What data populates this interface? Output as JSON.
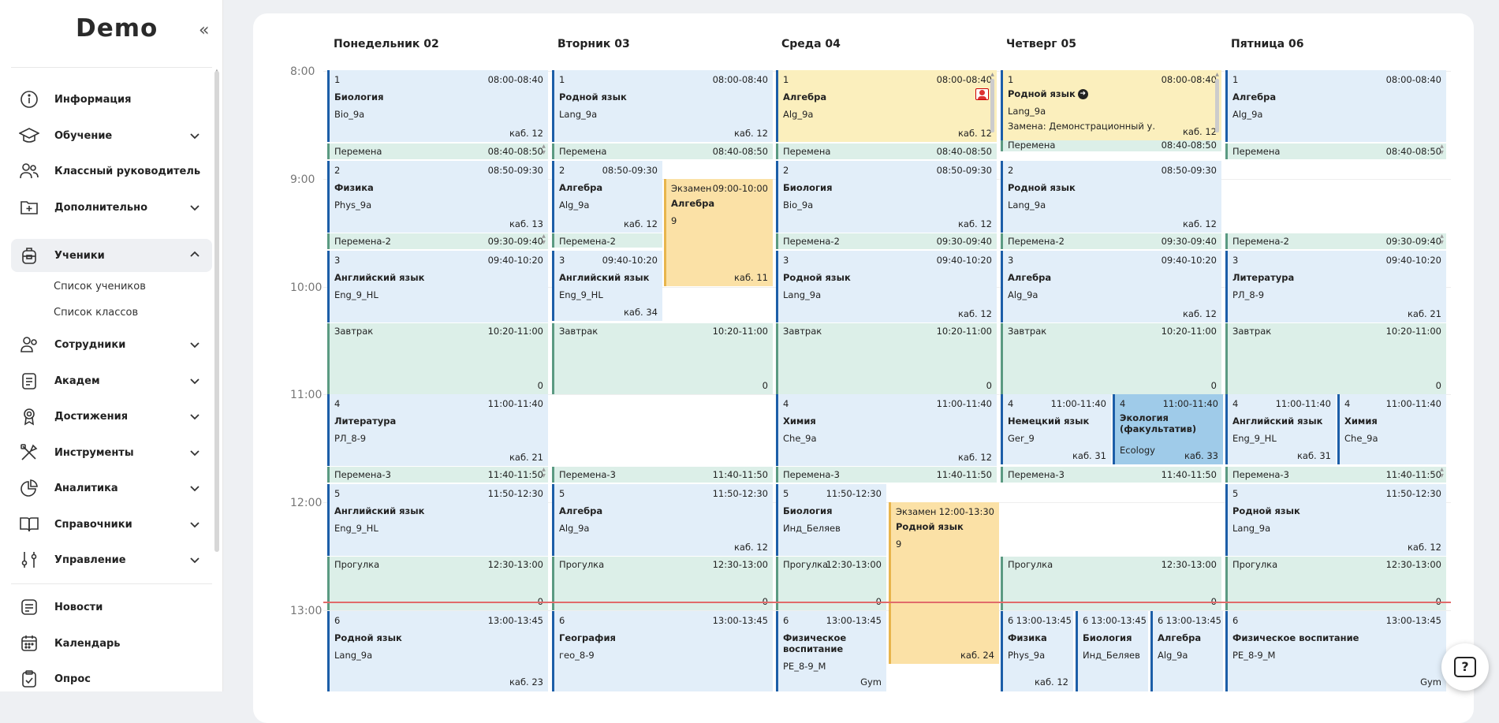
{
  "app": {
    "logo": "Demo"
  },
  "nav": {
    "info": "Информация",
    "learning": "Обучение",
    "class_teacher": "Классный руководитель",
    "additional": "Дополнительно",
    "students": "Ученики",
    "students_list": "Список учеников",
    "classes_list": "Список классов",
    "staff": "Сотрудники",
    "academ": "Академ",
    "achievements": "Достижения",
    "tools": "Инструменты",
    "analytics": "Аналитика",
    "references": "Справочники",
    "management": "Управление",
    "news": "Новости",
    "calendar": "Календарь",
    "survey": "Опрос"
  },
  "days": [
    "Понедельник 02",
    "Вторник 03",
    "Среда 04",
    "Четверг 05",
    "Пятница 06"
  ],
  "hours": [
    "8:00",
    "9:00",
    "10:00",
    "11:00",
    "12:00",
    "13:00"
  ],
  "help": "?",
  "events": [
    {
      "num": "1",
      "time": "08:00-08:40",
      "name": "Биология",
      "grp": "Bio_9a",
      "room": "каб. 12"
    },
    {
      "num": "1",
      "time": "08:00-08:40",
      "name": "Родной язык",
      "grp": "Lang_9a",
      "room": "каб. 12"
    },
    {
      "num": "1",
      "time": "08:00-08:40",
      "name": "Алгебра",
      "grp": "Alg_9a",
      "room": "каб. 12"
    },
    {
      "num": "1",
      "time": "08:00-08:40",
      "name": "Родной язык",
      "grp": "Lang_9a",
      "room": "каб. 12",
      "note": "Замена: Демонстрационный у."
    },
    {
      "num": "1",
      "time": "08:00-08:40",
      "name": "Алгебра",
      "grp": "Alg_9a",
      "room": ""
    },
    {
      "num": "Перемена",
      "time": "08:40-08:50"
    },
    {
      "num": "Перемена",
      "time": "08:40-08:50"
    },
    {
      "num": "Перемена",
      "time": "08:40-08:50"
    },
    {
      "num": "Перемена",
      "time": "08:40-08:50"
    },
    {
      "num": "Перемена",
      "time": "08:40-08:50"
    },
    {
      "num": "2",
      "time": "08:50-09:30",
      "name": "Физика",
      "grp": "Phys_9a",
      "room": "каб. 13"
    },
    {
      "num": "2",
      "time": "08:50-09:30",
      "name": "Алгебра",
      "grp": "Alg_9a",
      "room": "каб. 12"
    },
    {
      "num": "Экзамен",
      "time": "09:00-10:00",
      "name": "Алгебра",
      "grp": "9",
      "room": "каб. 11"
    },
    {
      "num": "2",
      "time": "08:50-09:30",
      "name": "Биология",
      "grp": "Bio_9a",
      "room": "каб. 12"
    },
    {
      "num": "2",
      "time": "08:50-09:30",
      "name": "Родной язык",
      "grp": "Lang_9a",
      "room": "каб. 12"
    },
    {
      "num": "Перемена-2",
      "time": "09:30-09:40"
    },
    {
      "num": "Перемена-2",
      "time": "09:30-09:40"
    },
    {
      "num": "Перемена-2",
      "time": "09:30-09:40"
    },
    {
      "num": "Перемена-2",
      "time": "09:30-09:40"
    },
    {
      "num": "Перемена-2",
      "time": "09:30-09:40"
    },
    {
      "num": "3",
      "time": "09:40-10:20",
      "name": "Английский язык",
      "grp": "Eng_9_HL",
      "room": ""
    },
    {
      "num": "3",
      "time": "09:40-10:20",
      "name": "Английский язык",
      "grp": "Eng_9_HL",
      "room": "каб. 34"
    },
    {
      "num": "3",
      "time": "09:40-10:20",
      "name": "Родной язык",
      "grp": "Lang_9a",
      "room": "каб. 12"
    },
    {
      "num": "3",
      "time": "09:40-10:20",
      "name": "Алгебра",
      "grp": "Alg_9a",
      "room": "каб. 12"
    },
    {
      "num": "3",
      "time": "09:40-10:20",
      "name": "Литература",
      "grp": "РЛ_8-9",
      "room": "каб. 21"
    },
    {
      "num": "Завтрак",
      "time": "10:20-11:00",
      "cnt": "0"
    },
    {
      "num": "Завтрак",
      "time": "10:20-11:00",
      "cnt": "0"
    },
    {
      "num": "Завтрак",
      "time": "10:20-11:00",
      "cnt": "0"
    },
    {
      "num": "Завтрак",
      "time": "10:20-11:00",
      "cnt": "0"
    },
    {
      "num": "Завтрак",
      "time": "10:20-11:00",
      "cnt": "0"
    },
    {
      "num": "4",
      "time": "11:00-11:40",
      "name": "Литература",
      "grp": "РЛ_8-9",
      "room": "каб. 21"
    },
    {
      "num": "4",
      "time": "11:00-11:40",
      "name": "Химия",
      "grp": "Che_9a",
      "room": "каб. 12"
    },
    {
      "num": "4",
      "time": "11:00-11:40",
      "name": "Немецкий язык",
      "grp": "Ger_9",
      "room": "каб. 31"
    },
    {
      "num": "4",
      "time": "11:00-11:40",
      "name": "Экология (факультатив)",
      "grp": "Ecology",
      "room": "каб. 33"
    },
    {
      "num": "4",
      "time": "11:00-11:40",
      "name": "Английский язык",
      "grp": "Eng_9_HL",
      "room": "каб. 31"
    },
    {
      "num": "4",
      "time": "11:00-11:40",
      "name": "Химия",
      "grp": "Che_9a",
      "room": ""
    },
    {
      "num": "Перемена-3",
      "time": "11:40-11:50"
    },
    {
      "num": "Перемена-3",
      "time": "11:40-11:50"
    },
    {
      "num": "Перемена-3",
      "time": "11:40-11:50"
    },
    {
      "num": "Перемена-3",
      "time": "11:40-11:50"
    },
    {
      "num": "Перемена-3",
      "time": "11:40-11:50"
    },
    {
      "num": "5",
      "time": "11:50-12:30",
      "name": "Английский язык",
      "grp": "Eng_9_HL",
      "room": ""
    },
    {
      "num": "5",
      "time": "11:50-12:30",
      "name": "Алгебра",
      "grp": "Alg_9a",
      "room": "каб. 12"
    },
    {
      "num": "5",
      "time": "11:50-12:30",
      "name": "Биология",
      "grp": "Инд_Беляев",
      "room": ""
    },
    {
      "num": "Экзамен",
      "time": "12:00-13:30",
      "name": "Родной язык",
      "grp": "9",
      "room": "каб. 24"
    },
    {
      "num": "5",
      "time": "11:50-12:30",
      "name": "Родной язык",
      "grp": "Lang_9a",
      "room": "каб. 12"
    },
    {
      "num": "Прогулка",
      "time": "12:30-13:00",
      "cnt": "0"
    },
    {
      "num": "Прогулка",
      "time": "12:30-13:00",
      "cnt": "0"
    },
    {
      "num": "Прогулка",
      "time": "12:30-13:00",
      "cnt": "0"
    },
    {
      "num": "Прогулка",
      "time": "12:30-13:00",
      "cnt": "0"
    },
    {
      "num": "Прогулка",
      "time": "12:30-13:00",
      "cnt": "0"
    },
    {
      "num": "6",
      "time": "13:00-13:45",
      "name": "Родной язык",
      "grp": "Lang_9a",
      "room": "каб. 23"
    },
    {
      "num": "6",
      "time": "13:00-13:45",
      "name": "География",
      "grp": "гео_8-9",
      "room": ""
    },
    {
      "num": "6",
      "time": "13:00-13:45",
      "name": "Физическое воспитание",
      "grp": "PE_8-9_M",
      "room": "Gym"
    },
    {
      "num": "6",
      "time": "13:00-13:45",
      "name": "Физика",
      "grp": "Phys_9a",
      "room": "каб. 12"
    },
    {
      "num": "6",
      "time": "13:00-13:45",
      "name": "Биология",
      "grp": "Инд_Беляев",
      "room": ""
    },
    {
      "num": "6",
      "time": "13:00-13:45",
      "name": "Алгебра",
      "grp": "Alg_9a",
      "room": ""
    },
    {
      "num": "6",
      "time": "13:00-13:45",
      "name": "Физическое воспитание",
      "grp": "PE_8-9_M",
      "room": "Gym"
    }
  ],
  "colors": {
    "lesson": "#e2eef9",
    "break": "#dcefe8",
    "exam": "#fbe1a6",
    "substitution": "#fbefbd",
    "elective": "#9fcbe9",
    "now_line": "#e16b6b",
    "accent": "#1c5ea8"
  }
}
